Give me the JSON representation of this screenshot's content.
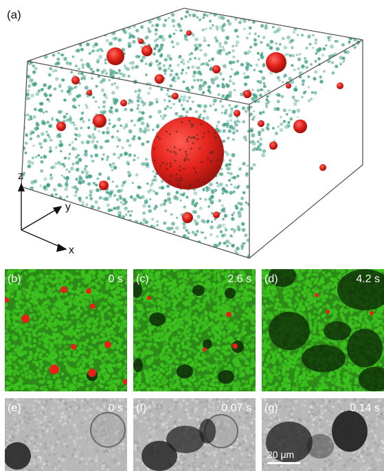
{
  "panels": {
    "a": {
      "label": "(a)"
    },
    "b": {
      "label": "(b)",
      "time": "0 s"
    },
    "c": {
      "label": "(c)",
      "time": "2.6 s"
    },
    "d": {
      "label": "(d)",
      "time": "4.2 s"
    },
    "e": {
      "label": "(e)",
      "time": "0 s"
    },
    "f": {
      "label": "(f)",
      "time": "0.07 s"
    },
    "g": {
      "label": "(g)",
      "time": "0.14 s"
    }
  },
  "axes": {
    "x": "x",
    "y": "y",
    "z": "z"
  },
  "scale_bar": {
    "label": "20 μm"
  },
  "colors": {
    "particle_green": "#3a9c80",
    "bubble_red": "#e0201a",
    "micro_green": "#3cc21e",
    "micro_red": "#e8201a",
    "gray_bg": "#b8b8b8"
  }
}
